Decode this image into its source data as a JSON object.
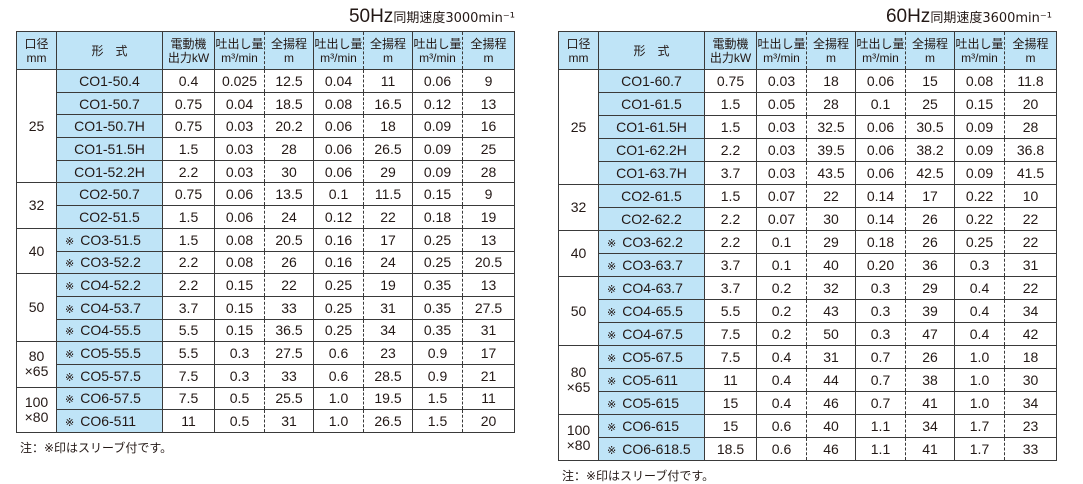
{
  "headers": {
    "bore": [
      "口径",
      "mm"
    ],
    "model": "形　式",
    "motor": [
      "電動機",
      "出力kW"
    ],
    "flow": [
      "吐出し量",
      "m³/min"
    ],
    "head": [
      "全揚程",
      "m"
    ]
  },
  "colors": {
    "header_bg": "#bfe4f7",
    "border": "#3a3a3a"
  },
  "tables": [
    {
      "title_hz": "50Hz",
      "title_rest": "同期速度3000min⁻¹",
      "note": "注：※印はスリーブ付です。",
      "groups": [
        {
          "bore": [
            "25"
          ],
          "rows": [
            {
              "mark": "",
              "model": "CO1-50.4",
              "kw": "0.4",
              "v": [
                "0.025",
                "12.5",
                "0.04",
                "11",
                "0.06",
                "9"
              ]
            },
            {
              "mark": "",
              "model": "CO1-50.7",
              "kw": "0.75",
              "v": [
                "0.04",
                "18.5",
                "0.08",
                "16.5",
                "0.12",
                "13"
              ]
            },
            {
              "mark": "",
              "model": "CO1-50.7H",
              "kw": "0.75",
              "v": [
                "0.03",
                "20.2",
                "0.06",
                "18",
                "0.09",
                "16"
              ]
            },
            {
              "mark": "",
              "model": "CO1-51.5H",
              "kw": "1.5",
              "v": [
                "0.03",
                "28",
                "0.06",
                "26.5",
                "0.09",
                "25"
              ]
            },
            {
              "mark": "",
              "model": "CO1-52.2H",
              "kw": "2.2",
              "v": [
                "0.03",
                "30",
                "0.06",
                "29",
                "0.09",
                "28"
              ]
            }
          ]
        },
        {
          "bore": [
            "32"
          ],
          "rows": [
            {
              "mark": "",
              "model": "CO2-50.7",
              "kw": "0.75",
              "v": [
                "0.06",
                "13.5",
                "0.1",
                "11.5",
                "0.15",
                "9"
              ]
            },
            {
              "mark": "",
              "model": "CO2-51.5",
              "kw": "1.5",
              "v": [
                "0.06",
                "24",
                "0.12",
                "22",
                "0.18",
                "19"
              ]
            }
          ]
        },
        {
          "bore": [
            "40"
          ],
          "rows": [
            {
              "mark": "※",
              "model": "CO3-51.5",
              "kw": "1.5",
              "v": [
                "0.08",
                "20.5",
                "0.16",
                "17",
                "0.25",
                "13"
              ]
            },
            {
              "mark": "※",
              "model": "CO3-52.2",
              "kw": "2.2",
              "v": [
                "0.08",
                "26",
                "0.16",
                "24",
                "0.25",
                "20.5"
              ]
            }
          ]
        },
        {
          "bore": [
            "50"
          ],
          "rows": [
            {
              "mark": "※",
              "model": "CO4-52.2",
              "kw": "2.2",
              "v": [
                "0.15",
                "22",
                "0.25",
                "19",
                "0.35",
                "13"
              ]
            },
            {
              "mark": "※",
              "model": "CO4-53.7",
              "kw": "3.7",
              "v": [
                "0.15",
                "33",
                "0.25",
                "31",
                "0.35",
                "27.5"
              ]
            },
            {
              "mark": "※",
              "model": "CO4-55.5",
              "kw": "5.5",
              "v": [
                "0.15",
                "36.5",
                "0.25",
                "34",
                "0.35",
                "31"
              ]
            }
          ]
        },
        {
          "bore": [
            "80",
            "×65"
          ],
          "rows": [
            {
              "mark": "※",
              "model": "CO5-55.5",
              "kw": "5.5",
              "v": [
                "0.3",
                "27.5",
                "0.6",
                "23",
                "0.9",
                "17"
              ]
            },
            {
              "mark": "※",
              "model": "CO5-57.5",
              "kw": "7.5",
              "v": [
                "0.3",
                "33",
                "0.6",
                "28.5",
                "0.9",
                "21"
              ]
            }
          ]
        },
        {
          "bore": [
            "100",
            "×80"
          ],
          "rows": [
            {
              "mark": "※",
              "model": "CO6-57.5",
              "kw": "7.5",
              "v": [
                "0.5",
                "25.5",
                "1.0",
                "19.5",
                "1.5",
                "11"
              ]
            },
            {
              "mark": "※",
              "model": "CO6-511",
              "kw": "11",
              "v": [
                "0.5",
                "31",
                "1.0",
                "26.5",
                "1.5",
                "20"
              ]
            }
          ]
        }
      ]
    },
    {
      "title_hz": "60Hz",
      "title_rest": "同期速度3600min⁻¹",
      "note": "注：※印はスリーブ付です。",
      "groups": [
        {
          "bore": [
            "25"
          ],
          "rows": [
            {
              "mark": "",
              "model": "CO1-60.7",
              "kw": "0.75",
              "v": [
                "0.03",
                "18",
                "0.06",
                "15",
                "0.08",
                "11.8"
              ]
            },
            {
              "mark": "",
              "model": "CO1-61.5",
              "kw": "1.5",
              "v": [
                "0.05",
                "28",
                "0.1",
                "25",
                "0.15",
                "20"
              ]
            },
            {
              "mark": "",
              "model": "CO1-61.5H",
              "kw": "1.5",
              "v": [
                "0.03",
                "32.5",
                "0.06",
                "30.5",
                "0.09",
                "28"
              ]
            },
            {
              "mark": "",
              "model": "CO1-62.2H",
              "kw": "2.2",
              "v": [
                "0.03",
                "39.5",
                "0.06",
                "38.2",
                "0.09",
                "36.8"
              ]
            },
            {
              "mark": "",
              "model": "CO1-63.7H",
              "kw": "3.7",
              "v": [
                "0.03",
                "43.5",
                "0.06",
                "42.5",
                "0.09",
                "41.5"
              ]
            }
          ]
        },
        {
          "bore": [
            "32"
          ],
          "rows": [
            {
              "mark": "",
              "model": "CO2-61.5",
              "kw": "1.5",
              "v": [
                "0.07",
                "22",
                "0.14",
                "17",
                "0.22",
                "10"
              ]
            },
            {
              "mark": "",
              "model": "CO2-62.2",
              "kw": "2.2",
              "v": [
                "0.07",
                "30",
                "0.14",
                "26",
                "0.22",
                "22"
              ]
            }
          ]
        },
        {
          "bore": [
            "40"
          ],
          "rows": [
            {
              "mark": "※",
              "model": "CO3-62.2",
              "kw": "2.2",
              "v": [
                "0.1",
                "29",
                "0.18",
                "26",
                "0.25",
                "22"
              ]
            },
            {
              "mark": "※",
              "model": "CO3-63.7",
              "kw": "3.7",
              "v": [
                "0.1",
                "40",
                "0.20",
                "36",
                "0.3",
                "31"
              ]
            }
          ]
        },
        {
          "bore": [
            "50"
          ],
          "rows": [
            {
              "mark": "※",
              "model": "CO4-63.7",
              "kw": "3.7",
              "v": [
                "0.2",
                "32",
                "0.3",
                "29",
                "0.4",
                "22"
              ]
            },
            {
              "mark": "※",
              "model": "CO4-65.5",
              "kw": "5.5",
              "v": [
                "0.2",
                "43",
                "0.3",
                "39",
                "0.4",
                "34"
              ]
            },
            {
              "mark": "※",
              "model": "CO4-67.5",
              "kw": "7.5",
              "v": [
                "0.2",
                "50",
                "0.3",
                "47",
                "0.4",
                "42"
              ]
            }
          ]
        },
        {
          "bore": [
            "80",
            "×65"
          ],
          "rows": [
            {
              "mark": "※",
              "model": "CO5-67.5",
              "kw": "7.5",
              "v": [
                "0.4",
                "31",
                "0.7",
                "26",
                "1.0",
                "18"
              ]
            },
            {
              "mark": "※",
              "model": "CO5-611",
              "kw": "11",
              "v": [
                "0.4",
                "44",
                "0.7",
                "38",
                "1.0",
                "30"
              ]
            },
            {
              "mark": "※",
              "model": "CO5-615",
              "kw": "15",
              "v": [
                "0.4",
                "46",
                "0.7",
                "41",
                "1.0",
                "34"
              ]
            }
          ]
        },
        {
          "bore": [
            "100",
            "×80"
          ],
          "rows": [
            {
              "mark": "※",
              "model": "CO6-615",
              "kw": "15",
              "v": [
                "0.6",
                "40",
                "1.1",
                "34",
                "1.7",
                "23"
              ]
            },
            {
              "mark": "※",
              "model": "CO6-618.5",
              "kw": "18.5",
              "v": [
                "0.6",
                "46",
                "1.1",
                "41",
                "1.7",
                "33"
              ]
            }
          ]
        }
      ]
    }
  ]
}
